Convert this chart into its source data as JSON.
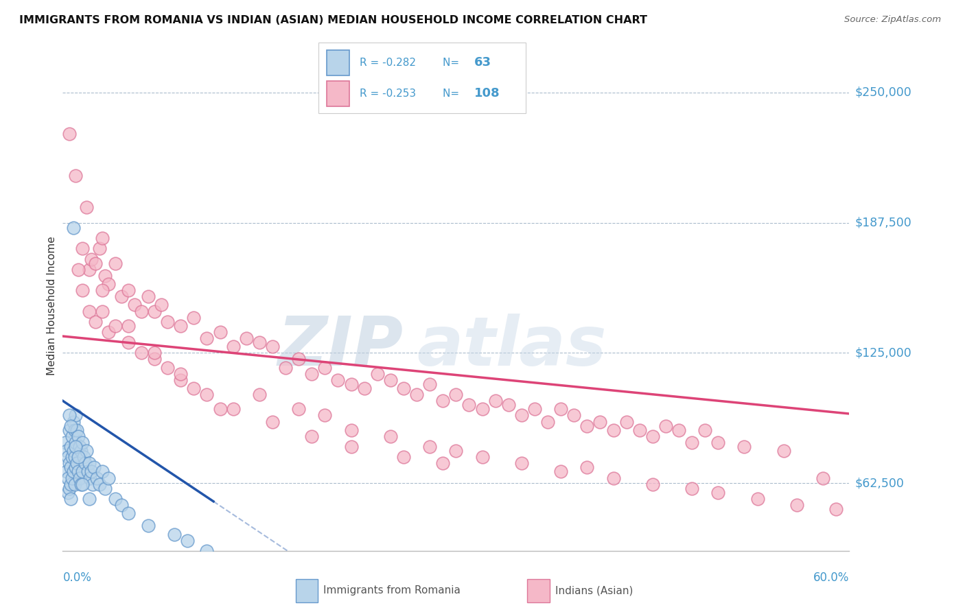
{
  "title": "IMMIGRANTS FROM ROMANIA VS INDIAN (ASIAN) MEDIAN HOUSEHOLD INCOME CORRELATION CHART",
  "source": "Source: ZipAtlas.com",
  "watermark_zip": "ZIP",
  "watermark_atlas": "atlas",
  "ylabel": "Median Household Income",
  "y_ticks": [
    62500,
    125000,
    187500,
    250000
  ],
  "y_tick_labels": [
    "$62,500",
    "$125,000",
    "$187,500",
    "$250,000"
  ],
  "xlim": [
    0.0,
    60.0
  ],
  "ylim": [
    30000,
    265000
  ],
  "romania_R": -0.282,
  "romania_N": 63,
  "indian_R": -0.253,
  "indian_N": 108,
  "romania_color": "#b8d4ea",
  "romania_edge": "#6699cc",
  "indian_color": "#f5b8c8",
  "indian_edge": "#dd7799",
  "romania_line_color": "#2255aa",
  "indian_line_color": "#dd4477",
  "grid_color": "#aabbcc",
  "tick_label_color": "#4499cc",
  "title_color": "#111111",
  "source_color": "#666666",
  "watermark_color": "#c8d8e8",
  "bottom_label_color": "#555555",
  "romania_line_intercept": 102000,
  "romania_line_slope": -4200,
  "indian_line_intercept": 133000,
  "indian_line_slope": -620,
  "romania_solid_max_x": 11.5,
  "romania_points_x": [
    0.2,
    0.3,
    0.3,
    0.4,
    0.4,
    0.4,
    0.5,
    0.5,
    0.5,
    0.6,
    0.6,
    0.6,
    0.6,
    0.7,
    0.7,
    0.7,
    0.8,
    0.8,
    0.8,
    0.9,
    0.9,
    0.9,
    1.0,
    1.0,
    1.0,
    1.1,
    1.1,
    1.2,
    1.2,
    1.3,
    1.3,
    1.4,
    1.4,
    1.5,
    1.5,
    1.6,
    1.7,
    1.8,
    1.9,
    2.0,
    2.1,
    2.2,
    2.3,
    2.4,
    2.6,
    2.8,
    3.0,
    3.2,
    3.5,
    4.0,
    4.5,
    5.0,
    6.5,
    8.5,
    9.5,
    11.0,
    0.5,
    0.6,
    0.8,
    1.0,
    1.2,
    1.5,
    2.0
  ],
  "romania_points_y": [
    82000,
    78000,
    68000,
    75000,
    65000,
    58000,
    88000,
    72000,
    60000,
    80000,
    70000,
    62000,
    55000,
    85000,
    75000,
    65000,
    92000,
    78000,
    68000,
    88000,
    75000,
    62000,
    95000,
    82000,
    70000,
    88000,
    72000,
    85000,
    68000,
    80000,
    65000,
    78000,
    62000,
    82000,
    68000,
    75000,
    72000,
    78000,
    68000,
    72000,
    65000,
    68000,
    62000,
    70000,
    65000,
    62000,
    68000,
    60000,
    65000,
    55000,
    52000,
    48000,
    42000,
    38000,
    35000,
    30000,
    95000,
    90000,
    185000,
    80000,
    75000,
    62000,
    55000
  ],
  "indian_points_x": [
    0.5,
    1.0,
    1.5,
    1.8,
    2.0,
    2.2,
    2.5,
    2.8,
    3.0,
    3.2,
    3.5,
    4.0,
    4.5,
    5.0,
    5.5,
    6.0,
    6.5,
    7.0,
    7.5,
    8.0,
    9.0,
    10.0,
    11.0,
    12.0,
    13.0,
    14.0,
    15.0,
    16.0,
    17.0,
    18.0,
    19.0,
    20.0,
    21.0,
    22.0,
    23.0,
    24.0,
    25.0,
    26.0,
    27.0,
    28.0,
    29.0,
    30.0,
    31.0,
    32.0,
    33.0,
    34.0,
    35.0,
    36.0,
    37.0,
    38.0,
    39.0,
    40.0,
    41.0,
    42.0,
    43.0,
    44.0,
    45.0,
    46.0,
    47.0,
    48.0,
    49.0,
    50.0,
    52.0,
    55.0,
    58.0,
    1.2,
    1.5,
    2.0,
    2.5,
    3.0,
    3.5,
    4.0,
    5.0,
    6.0,
    7.0,
    8.0,
    9.0,
    10.0,
    12.0,
    15.0,
    18.0,
    20.0,
    22.0,
    25.0,
    28.0,
    30.0,
    32.0,
    35.0,
    38.0,
    40.0,
    42.0,
    45.0,
    48.0,
    50.0,
    53.0,
    56.0,
    59.0,
    3.0,
    5.0,
    7.0,
    9.0,
    11.0,
    13.0,
    16.0,
    19.0,
    22.0,
    26.0,
    29.0
  ],
  "indian_points_y": [
    230000,
    210000,
    175000,
    195000,
    165000,
    170000,
    168000,
    175000,
    180000,
    162000,
    158000,
    168000,
    152000,
    155000,
    148000,
    145000,
    152000,
    145000,
    148000,
    140000,
    138000,
    142000,
    132000,
    135000,
    128000,
    132000,
    130000,
    128000,
    118000,
    122000,
    115000,
    118000,
    112000,
    110000,
    108000,
    115000,
    112000,
    108000,
    105000,
    110000,
    102000,
    105000,
    100000,
    98000,
    102000,
    100000,
    95000,
    98000,
    92000,
    98000,
    95000,
    90000,
    92000,
    88000,
    92000,
    88000,
    85000,
    90000,
    88000,
    82000,
    88000,
    82000,
    80000,
    78000,
    65000,
    165000,
    155000,
    145000,
    140000,
    145000,
    135000,
    138000,
    130000,
    125000,
    122000,
    118000,
    112000,
    108000,
    98000,
    105000,
    98000,
    95000,
    88000,
    85000,
    80000,
    78000,
    75000,
    72000,
    68000,
    70000,
    65000,
    62000,
    60000,
    58000,
    55000,
    52000,
    50000,
    155000,
    138000,
    125000,
    115000,
    105000,
    98000,
    92000,
    85000,
    80000,
    75000,
    72000
  ]
}
